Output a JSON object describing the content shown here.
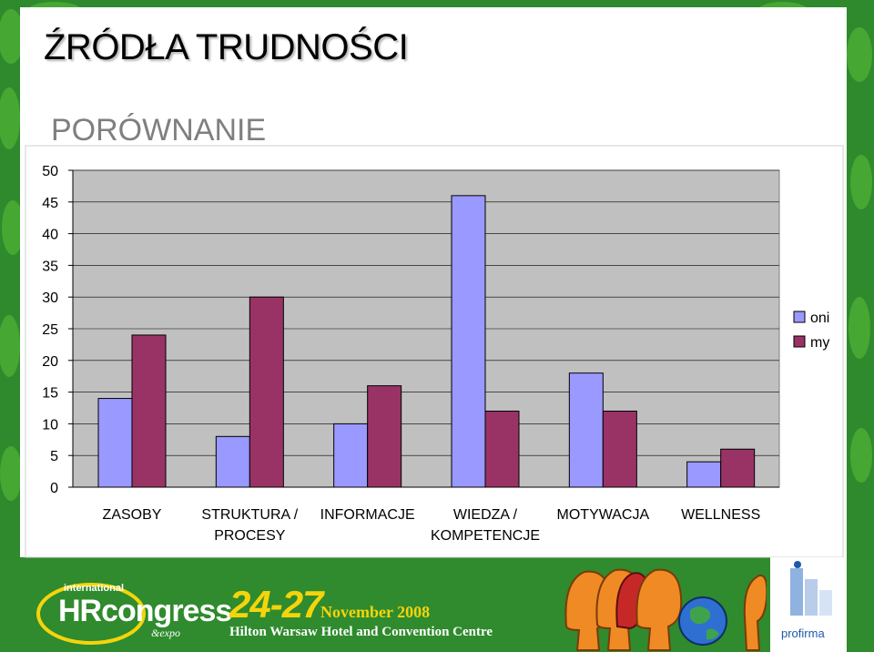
{
  "slide": {
    "title": "ŹRÓDŁA TRUDNOŚCI"
  },
  "footer": {
    "hr_intl": "international",
    "hr_name": "HRcongress",
    "hr_expo": "&expo",
    "dates": "24-27",
    "month": "November 2008",
    "venue": "Hilton Warsaw Hotel and Convention Centre",
    "partner": "profirma"
  },
  "colors": {
    "oni": "#9999ff",
    "my": "#993366",
    "plot_bg": "#c0c0c0",
    "background_green": "#2e8a2c"
  },
  "chart_data": {
    "type": "bar",
    "title": "PORÓWNANIE",
    "xlabel": "",
    "ylabel": "",
    "ylim": [
      0,
      50
    ],
    "yticks": [
      0,
      5,
      10,
      15,
      20,
      25,
      30,
      35,
      40,
      45,
      50
    ],
    "grid": true,
    "legend_position": "right",
    "categories": [
      [
        "ZASOBY"
      ],
      [
        "STRUKTURA /",
        "PROCESY"
      ],
      [
        "INFORMACJE"
      ],
      [
        "WIEDZA /",
        "KOMPETENCJE"
      ],
      [
        "MOTYWACJA"
      ],
      [
        "WELLNESS"
      ]
    ],
    "series": [
      {
        "name": "oni",
        "color": "#9999ff",
        "values": [
          14,
          8,
          10,
          46,
          18,
          4
        ]
      },
      {
        "name": "my",
        "color": "#993366",
        "values": [
          24,
          30,
          16,
          12,
          12,
          6
        ]
      }
    ]
  }
}
